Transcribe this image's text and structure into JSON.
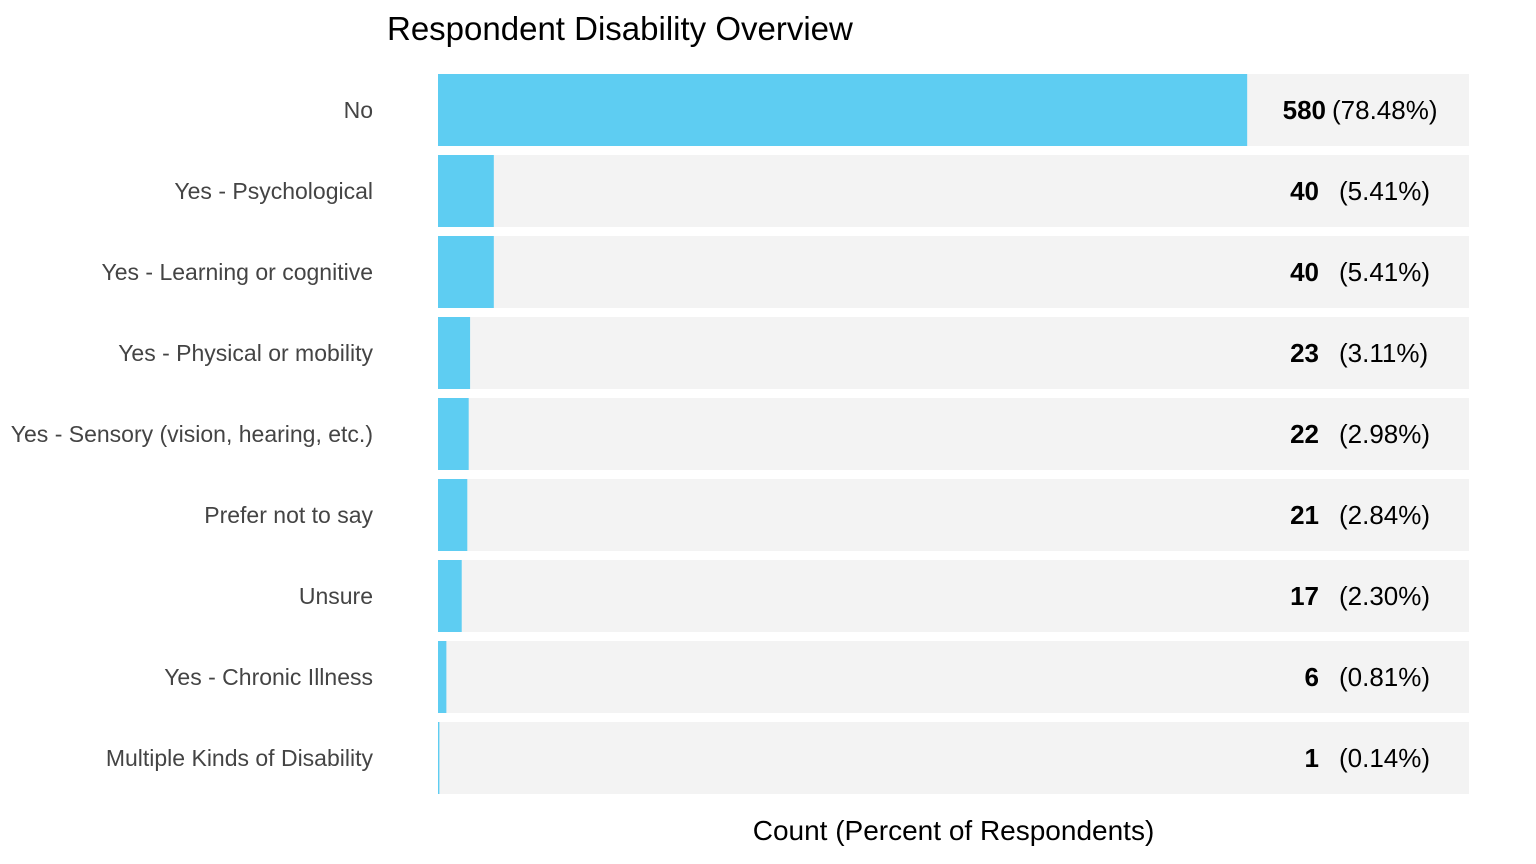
{
  "chart_data": {
    "type": "bar",
    "orientation": "horizontal",
    "title": "Respondent Disability Overview",
    "xlabel": "Count (Percent of Respondents)",
    "ylabel": "",
    "categories": [
      "No",
      "Yes - Psychological",
      "Yes - Learning or cognitive",
      "Yes - Physical or mobility",
      "Yes - Sensory (vision, hearing, etc.)",
      "Prefer not to say",
      "Unsure",
      "Yes - Chronic Illness",
      "Multiple Kinds of Disability"
    ],
    "values": [
      580,
      40,
      40,
      23,
      22,
      21,
      17,
      6,
      1
    ],
    "percent_labels": [
      "(78.48%)",
      "(5.41%)",
      "(5.41%)",
      "(3.11%)",
      "(2.98%)",
      "(2.84%)",
      "(2.30%)",
      "(0.81%)",
      "(0.14%)"
    ],
    "xlim": [
      0,
      739
    ],
    "grid": false,
    "legend": "none",
    "colors": {
      "bar": "#5ecdf2",
      "track": "#f3f3f3"
    }
  }
}
